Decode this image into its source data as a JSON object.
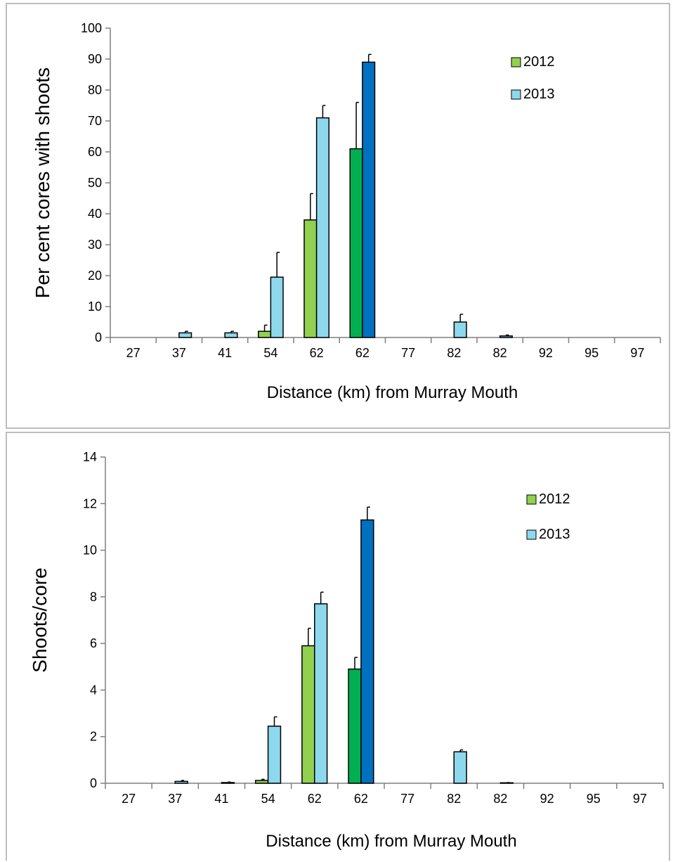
{
  "chart_data": [
    {
      "type": "bar",
      "categories": [
        "27",
        "37",
        "41",
        "54",
        "62",
        "62",
        "77",
        "82",
        "82",
        "92",
        "95",
        "97"
      ],
      "series": [
        {
          "name": "2012",
          "values": [
            null,
            null,
            null,
            2,
            38,
            61,
            null,
            null,
            null,
            null,
            null,
            null
          ],
          "errors": [
            null,
            null,
            null,
            2,
            8.5,
            15,
            null,
            null,
            null,
            null,
            null,
            null
          ],
          "colors": [
            null,
            null,
            null,
            "#92D050",
            "#92D050",
            "#00B050",
            null,
            null,
            null,
            null,
            null,
            null
          ]
        },
        {
          "name": "2013",
          "values": [
            null,
            1.5,
            1.5,
            19.5,
            71,
            89,
            null,
            5,
            0.5,
            null,
            null,
            null
          ],
          "errors": [
            null,
            0.5,
            0.5,
            8,
            4,
            2.5,
            null,
            2.5,
            0.3,
            null,
            null,
            null
          ],
          "colors": [
            null,
            "#8DD8EC",
            "#8DD8EC",
            "#8DD8EC",
            "#8DD8EC",
            "#0070C0",
            null,
            "#8DD8EC",
            "#8DD8EC",
            null,
            null,
            null
          ]
        }
      ],
      "legend_colors": [
        "#92D050",
        "#8DD8EC"
      ],
      "legend_position": "top-right",
      "xlabel": "Distance (km) from Murray Mouth",
      "ylabel": "Per cent cores with shoots",
      "ylim": [
        0,
        100
      ],
      "ytick_step": 10,
      "grid": false
    },
    {
      "type": "bar",
      "categories": [
        "27",
        "37",
        "41",
        "54",
        "62",
        "62",
        "77",
        "82",
        "82",
        "92",
        "95",
        "97"
      ],
      "series": [
        {
          "name": "2012",
          "values": [
            null,
            null,
            null,
            0.12,
            5.9,
            4.9,
            null,
            null,
            null,
            null,
            null,
            null
          ],
          "errors": [
            null,
            null,
            null,
            0.05,
            0.75,
            0.5,
            null,
            null,
            null,
            null,
            null,
            null
          ],
          "colors": [
            null,
            null,
            null,
            "#92D050",
            "#92D050",
            "#00B050",
            null,
            null,
            null,
            null,
            null,
            null
          ]
        },
        {
          "name": "2013",
          "values": [
            null,
            0.08,
            0.03,
            2.45,
            7.7,
            11.3,
            null,
            1.35,
            0.02,
            null,
            null,
            null
          ],
          "errors": [
            null,
            0.04,
            0.02,
            0.4,
            0.5,
            0.55,
            null,
            0.08,
            0.01,
            null,
            null,
            null
          ],
          "colors": [
            null,
            "#8DD8EC",
            "#8DD8EC",
            "#8DD8EC",
            "#8DD8EC",
            "#0070C0",
            null,
            "#8DD8EC",
            "#8DD8EC",
            null,
            null,
            null
          ]
        }
      ],
      "legend_colors": [
        "#92D050",
        "#8DD8EC"
      ],
      "legend_position": "top-right",
      "xlabel": "Distance (km) from Murray Mouth",
      "ylabel": "Shoots/core",
      "ylim": [
        0,
        14
      ],
      "ytick_step": 2,
      "grid": false
    }
  ]
}
